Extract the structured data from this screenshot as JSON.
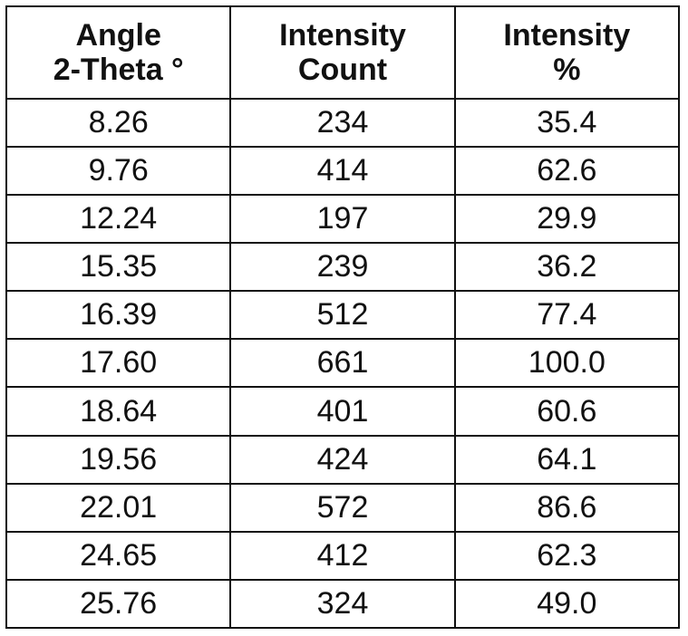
{
  "table": {
    "headers": [
      [
        "Angle",
        "2-Theta °"
      ],
      [
        "Intensity",
        "Count"
      ],
      [
        "Intensity",
        "%"
      ]
    ],
    "rows": [
      [
        "8.26",
        "234",
        "35.4"
      ],
      [
        "9.76",
        "414",
        "62.6"
      ],
      [
        "12.24",
        "197",
        "29.9"
      ],
      [
        "15.35",
        "239",
        "36.2"
      ],
      [
        "16.39",
        "512",
        "77.4"
      ],
      [
        "17.60",
        "661",
        "100.0"
      ],
      [
        "18.64",
        "401",
        "60.6"
      ],
      [
        "19.56",
        "424",
        "64.1"
      ],
      [
        "22.01",
        "572",
        "86.6"
      ],
      [
        "24.65",
        "412",
        "62.3"
      ],
      [
        "25.76",
        "324",
        "49.0"
      ]
    ]
  }
}
